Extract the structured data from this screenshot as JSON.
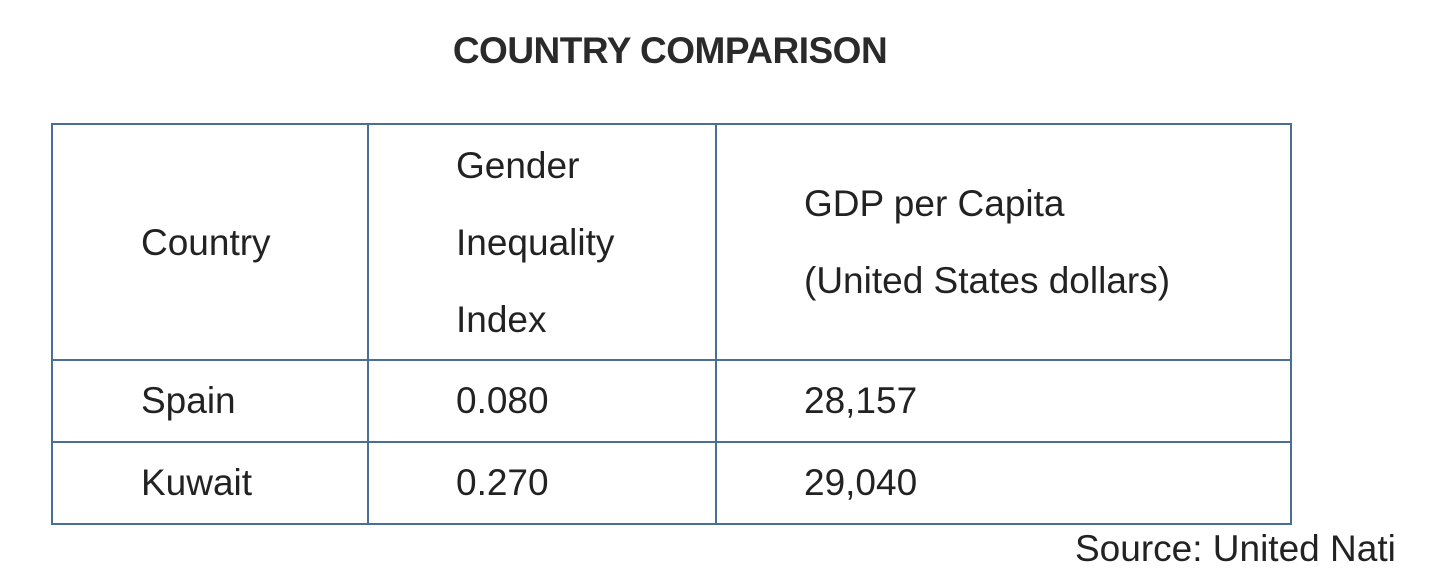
{
  "title": "COUNTRY COMPARISON",
  "table": {
    "headers": {
      "country": "Country",
      "gii": [
        "Gender",
        "Inequality",
        "Index"
      ],
      "gdp": [
        "GDP per Capita",
        "(United States dollars)"
      ]
    },
    "rows": [
      {
        "country": "Spain",
        "gii": "0.080",
        "gdp": "28,157"
      },
      {
        "country": "Kuwait",
        "gii": "0.270",
        "gdp": "29,040"
      }
    ]
  },
  "source_partial": "Source: United Nati"
}
